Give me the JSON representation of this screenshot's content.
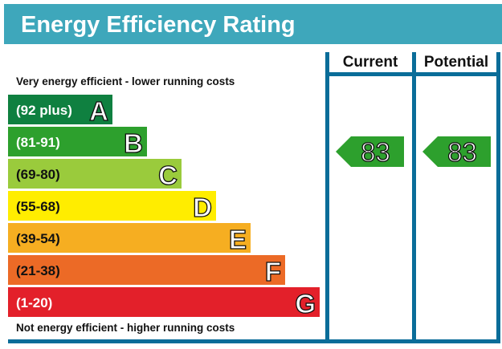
{
  "chart_data": {
    "type": "bar",
    "title": "Energy Efficiency Rating",
    "columns": [
      "Current",
      "Potential"
    ],
    "top_note": "Very energy efficient - lower running costs",
    "bottom_note": "Not energy efficient - higher running costs",
    "bands": [
      {
        "letter": "A",
        "range": "(92 plus)",
        "color": "#0f8040",
        "text_color": "#ffffff"
      },
      {
        "letter": "B",
        "range": "(81-91)",
        "color": "#2da02d",
        "text_color": "#ffffff"
      },
      {
        "letter": "C",
        "range": "(69-80)",
        "color": "#9acb3c",
        "text_color": "#111111"
      },
      {
        "letter": "D",
        "range": "(55-68)",
        "color": "#ffed00",
        "text_color": "#111111"
      },
      {
        "letter": "E",
        "range": "(39-54)",
        "color": "#f6ae21",
        "text_color": "#111111"
      },
      {
        "letter": "F",
        "range": "(21-38)",
        "color": "#ec6a26",
        "text_color": "#111111"
      },
      {
        "letter": "G",
        "range": "(1-20)",
        "color": "#e3202a",
        "text_color": "#ffffff"
      }
    ],
    "current": {
      "value": "83",
      "band": "B",
      "color": "#2da02d"
    },
    "potential": {
      "value": "83",
      "band": "B",
      "color": "#2da02d"
    },
    "colors": {
      "header": "#3ea7bb",
      "frame": "#0a6d99"
    }
  }
}
